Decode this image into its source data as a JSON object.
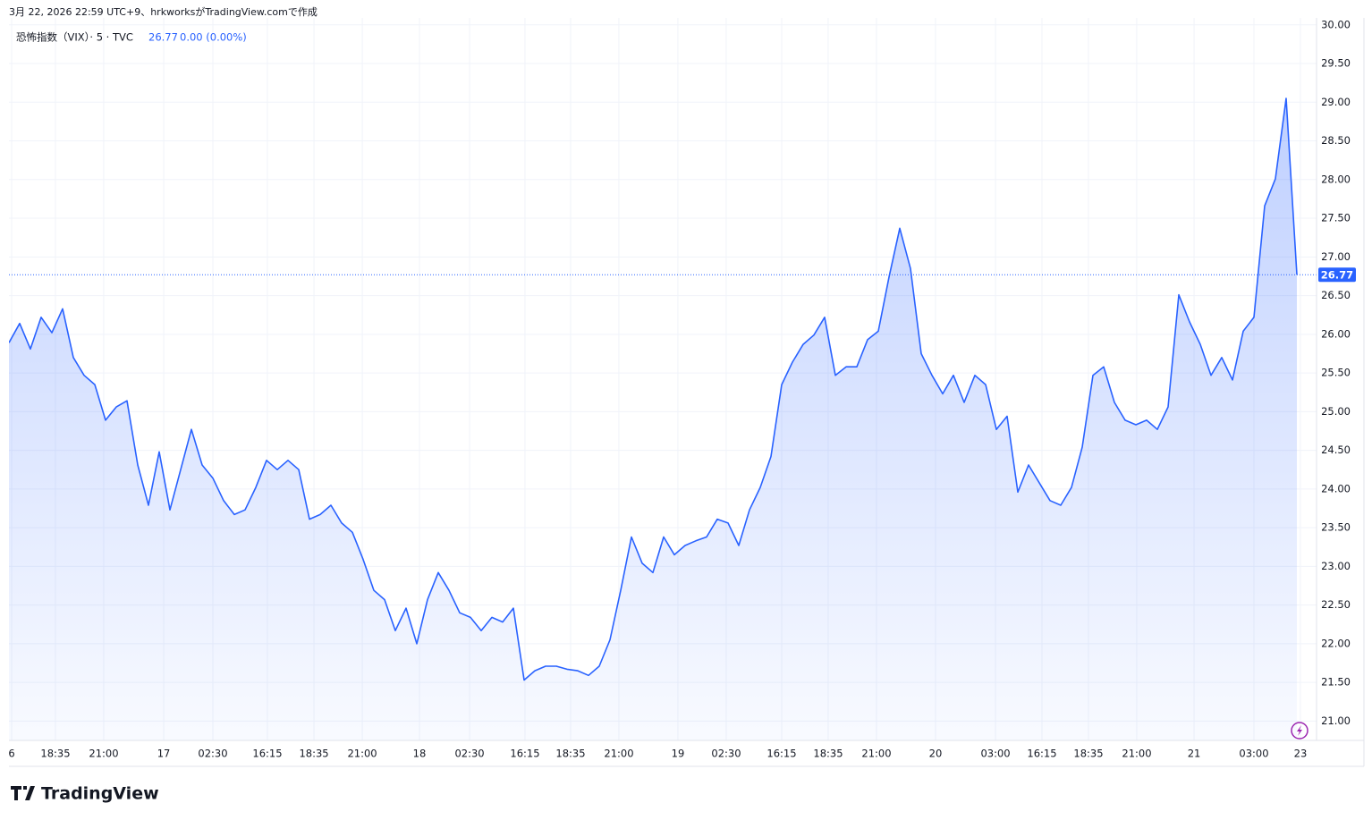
{
  "header": {
    "caption": "3月 22, 2026 22:59 UTC+9、hrkworksがTradingView.comで作成",
    "logo": "TradingView"
  },
  "legend": {
    "symbol": "恐怖指数（VIX）· 5 · TVC",
    "last": "26.77",
    "change": "0.00 (0.00%)"
  },
  "chart_data": {
    "type": "area",
    "series": [
      {
        "name": "恐怖指数（VIX）",
        "color": "#2962ff",
        "values": [
          25.89,
          26.14,
          25.81,
          26.22,
          26.02,
          26.33,
          25.7,
          25.47,
          25.35,
          24.89,
          25.06,
          25.14,
          24.31,
          23.79,
          24.48,
          23.73,
          24.25,
          24.77,
          24.31,
          24.14,
          23.85,
          23.67,
          23.73,
          24.02,
          24.37,
          24.25,
          24.37,
          24.25,
          23.61,
          23.67,
          23.79,
          23.56,
          23.44,
          23.09,
          22.69,
          22.57,
          22.17,
          22.46,
          22.0,
          22.57,
          22.92,
          22.69,
          22.4,
          22.34,
          22.17,
          22.34,
          22.28,
          22.46,
          21.53,
          21.65,
          21.71,
          21.71,
          21.67,
          21.65,
          21.59,
          21.71,
          22.05,
          22.69,
          23.38,
          23.04,
          22.92,
          23.38,
          23.15,
          23.27,
          23.33,
          23.38,
          23.61,
          23.56,
          23.27,
          23.73,
          24.02,
          24.42,
          25.35,
          25.64,
          25.87,
          25.99,
          26.22,
          25.47,
          25.58,
          25.58,
          25.93,
          26.04,
          26.74,
          27.37,
          26.85,
          25.75,
          25.47,
          25.23,
          25.47,
          25.12,
          25.47,
          25.35,
          24.77,
          24.94,
          23.96,
          24.31,
          24.08,
          23.85,
          23.79,
          24.02,
          24.54,
          25.47,
          25.58,
          25.12,
          24.89,
          24.83,
          24.89,
          24.77,
          25.06,
          26.51,
          26.16,
          25.87,
          25.47,
          25.7,
          25.41,
          26.04,
          26.22,
          27.66,
          28.01,
          29.05,
          26.77
        ]
      }
    ],
    "last_value": 26.77,
    "xlim": [
      0,
      120
    ],
    "xticks": [
      {
        "value": 0.25,
        "label": "6"
      },
      {
        "value": 4.33,
        "label": "18:35"
      },
      {
        "value": 8.83,
        "label": "21:00"
      },
      {
        "value": 14.42,
        "label": "17"
      },
      {
        "value": 19,
        "label": "02:30"
      },
      {
        "value": 24.08,
        "label": "16:15"
      },
      {
        "value": 28.42,
        "label": "18:35"
      },
      {
        "value": 32.92,
        "label": "21:00"
      },
      {
        "value": 38.25,
        "label": "18"
      },
      {
        "value": 42.92,
        "label": "02:30"
      },
      {
        "value": 48.08,
        "label": "16:15"
      },
      {
        "value": 52.33,
        "label": "18:35"
      },
      {
        "value": 56.83,
        "label": "21:00"
      },
      {
        "value": 62.33,
        "label": "19"
      },
      {
        "value": 66.83,
        "label": "02:30"
      },
      {
        "value": 72,
        "label": "16:15"
      },
      {
        "value": 76.33,
        "label": "18:35"
      },
      {
        "value": 80.83,
        "label": "21:00"
      },
      {
        "value": 86.33,
        "label": "20"
      },
      {
        "value": 91.92,
        "label": "03:00"
      },
      {
        "value": 96.25,
        "label": "16:15"
      },
      {
        "value": 100.58,
        "label": "18:35"
      },
      {
        "value": 105.08,
        "label": "21:00"
      },
      {
        "value": 110.42,
        "label": "21"
      },
      {
        "value": 116,
        "label": "03:00"
      },
      {
        "value": 120.33,
        "label": "23"
      }
    ],
    "ylim": [
      20.75,
      30.09
    ],
    "yticks": [
      {
        "value": 21,
        "label": "21.00"
      },
      {
        "value": 21.5,
        "label": "21.50"
      },
      {
        "value": 22,
        "label": "22.00"
      },
      {
        "value": 22.5,
        "label": "22.50"
      },
      {
        "value": 23,
        "label": "23.00"
      },
      {
        "value": 23.5,
        "label": "23.50"
      },
      {
        "value": 24,
        "label": "24.00"
      },
      {
        "value": 24.5,
        "label": "24.50"
      },
      {
        "value": 25,
        "label": "25.00"
      },
      {
        "value": 25.5,
        "label": "25.50"
      },
      {
        "value": 26,
        "label": "26.00"
      },
      {
        "value": 26.5,
        "label": "26.50"
      },
      {
        "value": 27,
        "label": "27.00"
      },
      {
        "value": 27.5,
        "label": "27.50"
      },
      {
        "value": 28,
        "label": "28.00"
      },
      {
        "value": 28.5,
        "label": "28.50"
      },
      {
        "value": 29,
        "label": "29.00"
      },
      {
        "value": 29.5,
        "label": "29.50"
      },
      {
        "value": 30,
        "label": "30.00"
      }
    ],
    "grid": true
  }
}
